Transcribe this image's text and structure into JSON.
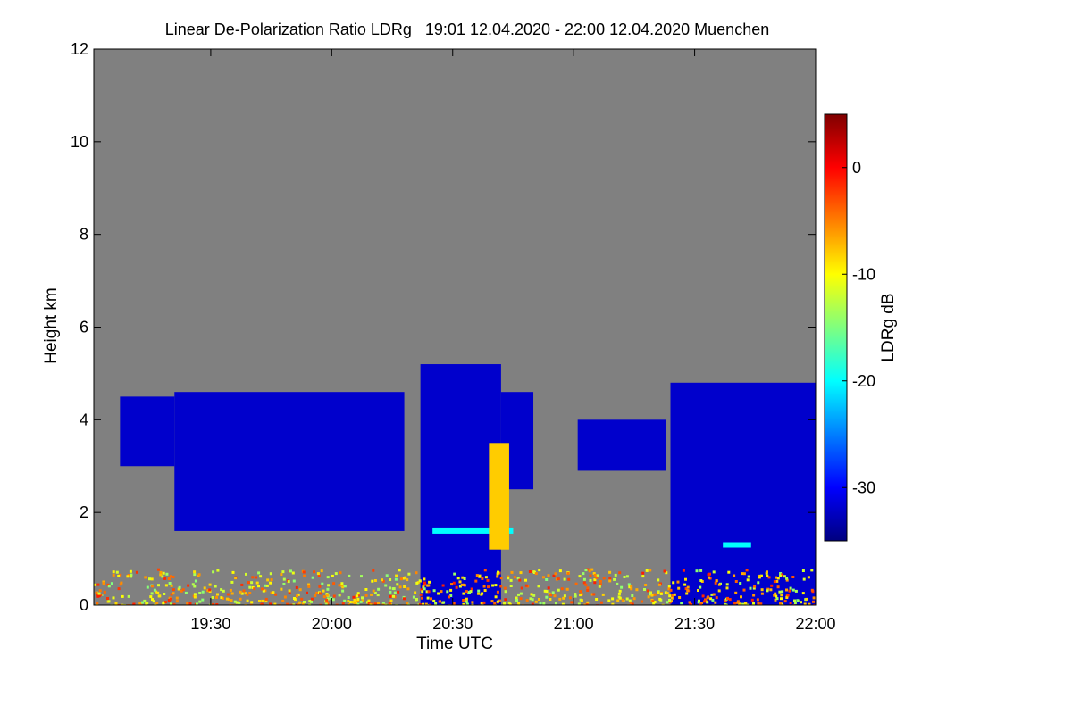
{
  "chart_data": {
    "type": "heatmap",
    "title": "Linear De-Polarization Ratio LDRg   19:01 12.04.2020 - 22:00 12.04.2020 Muenchen",
    "xlabel": "Time UTC",
    "ylabel": "Height km",
    "x_range_minutes_utc": [
      1141,
      1320
    ],
    "x_ticks": [
      {
        "minute": 1170,
        "label": "19:30"
      },
      {
        "minute": 1200,
        "label": "20:00"
      },
      {
        "minute": 1230,
        "label": "20:30"
      },
      {
        "minute": 1260,
        "label": "21:00"
      },
      {
        "minute": 1290,
        "label": "21:30"
      },
      {
        "minute": 1320,
        "label": "22:00"
      }
    ],
    "ylim": [
      0,
      12
    ],
    "y_ticks": [
      0,
      2,
      4,
      6,
      8,
      10,
      12
    ],
    "colorbar": {
      "label": "LDRg dB",
      "range": [
        -35,
        5
      ],
      "ticks": [
        0,
        -10,
        -20,
        -30
      ],
      "colormap": [
        "#00007f",
        "#0000ff",
        "#007fff",
        "#00ffff",
        "#7fff7f",
        "#ffff00",
        "#ff7f00",
        "#ff0000",
        "#7f0000"
      ]
    },
    "background_color": "#808080",
    "features": [
      {
        "kind": "cloud",
        "t_start": 1147.5,
        "t_end": 1161,
        "base_km": 3.0,
        "top_km": 4.5,
        "ldr_db": -32
      },
      {
        "kind": "cloud",
        "t_start": 1161,
        "t_end": 1218,
        "base_km": 1.6,
        "top_km": 4.6,
        "ldr_db": -32
      },
      {
        "kind": "precip_column",
        "t_start": 1222,
        "t_end": 1242,
        "base_km": 0.0,
        "top_km": 5.2,
        "ldr_db": -32
      },
      {
        "kind": "cloud",
        "t_start": 1242,
        "t_end": 1250,
        "base_km": 2.5,
        "top_km": 4.6,
        "ldr_db": -32
      },
      {
        "kind": "melting_layer",
        "t_start": 1225,
        "t_end": 1245,
        "height_km": 1.6,
        "ldr_db": -20
      },
      {
        "kind": "high_ldr_band",
        "t_start": 1239,
        "t_end": 1244,
        "base_km": 1.2,
        "top_km": 3.5,
        "ldr_db": -8
      },
      {
        "kind": "cloud",
        "t_start": 1261,
        "t_end": 1283,
        "base_km": 2.9,
        "top_km": 4.0,
        "ldr_db": -32
      },
      {
        "kind": "precip_column",
        "t_start": 1284,
        "t_end": 1320,
        "base_km": 0.0,
        "top_km": 4.8,
        "ldr_db": -32
      },
      {
        "kind": "melting_layer",
        "t_start": 1297,
        "t_end": 1304,
        "height_km": 1.3,
        "ldr_db": -20
      },
      {
        "kind": "boundary_layer_noise",
        "t_start": 1141,
        "t_end": 1320,
        "base_km": 0.0,
        "top_km": 0.8,
        "ldr_db": -8
      }
    ]
  }
}
